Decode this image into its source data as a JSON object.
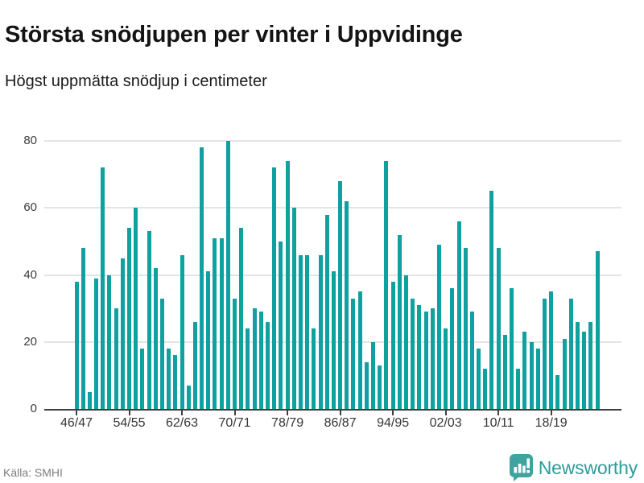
{
  "header": {
    "title": "Största snödjupen per vinter i Uppvidinge",
    "subtitle": "Högst uppmätta snödjup i centimeter"
  },
  "footer": {
    "source_label": "Källa: SMHI",
    "brand_name": "Newsworthy",
    "brand_icon": "newsworthy-logo-icon"
  },
  "colors": {
    "bar": "#0fa0a0",
    "grid": "#e4e4e4",
    "axis": "#3f3f3f",
    "brand": "#2e9b9b",
    "muted_text": "#7d7d7d"
  },
  "chart_data": {
    "type": "bar",
    "title": "Största snödjupen per vinter i Uppvidinge",
    "subtitle": "Högst uppmätta snödjup i centimeter",
    "unit": "cm",
    "xlabel": "",
    "ylabel": "",
    "categories": [
      "46/47",
      "47/48",
      "48/49",
      "49/50",
      "50/51",
      "51/52",
      "52/53",
      "53/54",
      "54/55",
      "55/56",
      "56/57",
      "57/58",
      "58/59",
      "59/60",
      "60/61",
      "61/62",
      "62/63",
      "63/64",
      "64/65",
      "65/66",
      "66/67",
      "67/68",
      "68/69",
      "69/70",
      "70/71",
      "71/72",
      "72/73",
      "73/74",
      "74/75",
      "75/76",
      "76/77",
      "77/78",
      "78/79",
      "79/80",
      "80/81",
      "81/82",
      "82/83",
      "83/84",
      "84/85",
      "85/86",
      "86/87",
      "87/88",
      "88/89",
      "89/90",
      "90/91",
      "91/92",
      "92/93",
      "93/94",
      "94/95",
      "95/96",
      "96/97",
      "97/98",
      "98/99",
      "99/00",
      "00/01",
      "01/02",
      "02/03",
      "03/04",
      "04/05",
      "05/06",
      "06/07",
      "07/08",
      "08/09",
      "09/10",
      "10/11",
      "11/12",
      "12/13",
      "13/14",
      "14/15",
      "15/16",
      "16/17",
      "17/18",
      "18/19",
      "19/20",
      "20/21",
      "21/22",
      "22/23",
      "23/24",
      "24/25",
      "25/26"
    ],
    "values": [
      38,
      48,
      5,
      39,
      72,
      40,
      30,
      45,
      54,
      60,
      18,
      53,
      42,
      33,
      18,
      16,
      46,
      7,
      26,
      78,
      41,
      51,
      51,
      80,
      33,
      54,
      24,
      30,
      29,
      26,
      72,
      50,
      74,
      60,
      46,
      46,
      24,
      46,
      58,
      41,
      68,
      62,
      33,
      35,
      14,
      20,
      13,
      74,
      38,
      52,
      40,
      33,
      31,
      29,
      30,
      49,
      24,
      36,
      56,
      48,
      29,
      18,
      12,
      65,
      48,
      22,
      36,
      12,
      23,
      20,
      18,
      33,
      35,
      10,
      21,
      33,
      26,
      23,
      26,
      47
    ],
    "y_ticks": [
      0,
      20,
      40,
      60,
      80
    ],
    "x_ticks_shown": [
      "46/47",
      "54/55",
      "62/63",
      "70/71",
      "78/79",
      "86/87",
      "94/95",
      "02/03",
      "10/11",
      "18/19"
    ],
    "x_tick_every": 8,
    "ylim": [
      0,
      80
    ],
    "grid": true,
    "legend": false,
    "source": "SMHI"
  }
}
